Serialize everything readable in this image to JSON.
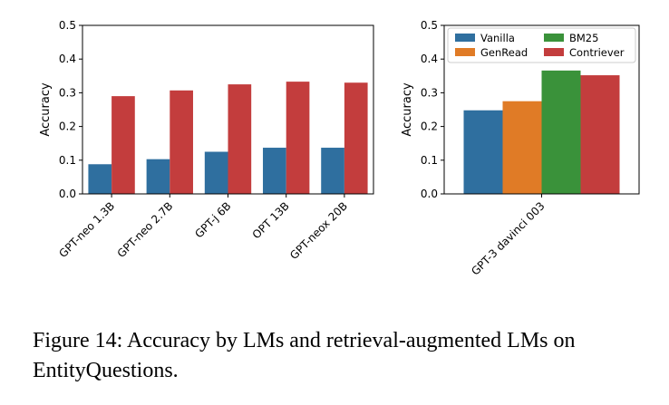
{
  "caption": "Figure 14: Accuracy by LMs and retrieval-augmented LMs on EntityQuestions.",
  "colors": {
    "Vanilla": "#2f6f9f",
    "GenRead": "#e07b26",
    "BM25": "#3a923a",
    "Contriever": "#c33d3d"
  },
  "chart_data": [
    {
      "type": "bar",
      "categories": [
        "GPT-neo 1.3B",
        "GPT-neo 2.7B",
        "GPT-j 6B",
        "OPT 13B",
        "GPT-neox 20B"
      ],
      "series": [
        {
          "key": "Vanilla",
          "values": [
            0.088,
            0.103,
            0.125,
            0.137,
            0.137
          ]
        },
        {
          "key": "Contriever",
          "values": [
            0.29,
            0.307,
            0.325,
            0.333,
            0.33
          ]
        }
      ],
      "ylabel": "Accuracy",
      "ylim": [
        0,
        0.5
      ],
      "yticks": [
        "0.0",
        "0.1",
        "0.2",
        "0.3",
        "0.4",
        "0.5"
      ],
      "legend": false
    },
    {
      "type": "bar",
      "categories": [
        "GPT-3 davinci 003"
      ],
      "series": [
        {
          "name": "Vanilla",
          "values": [
            0.248
          ]
        },
        {
          "name": "GenRead",
          "values": [
            0.275
          ]
        },
        {
          "name": "BM25",
          "values": [
            0.366
          ]
        },
        {
          "name": "Contriever",
          "values": [
            0.352
          ]
        }
      ],
      "ylabel": "Accuracy",
      "ylim": [
        0,
        0.5
      ],
      "yticks": [
        "0.0",
        "0.1",
        "0.2",
        "0.3",
        "0.4",
        "0.5"
      ],
      "legend": "upper center"
    }
  ]
}
